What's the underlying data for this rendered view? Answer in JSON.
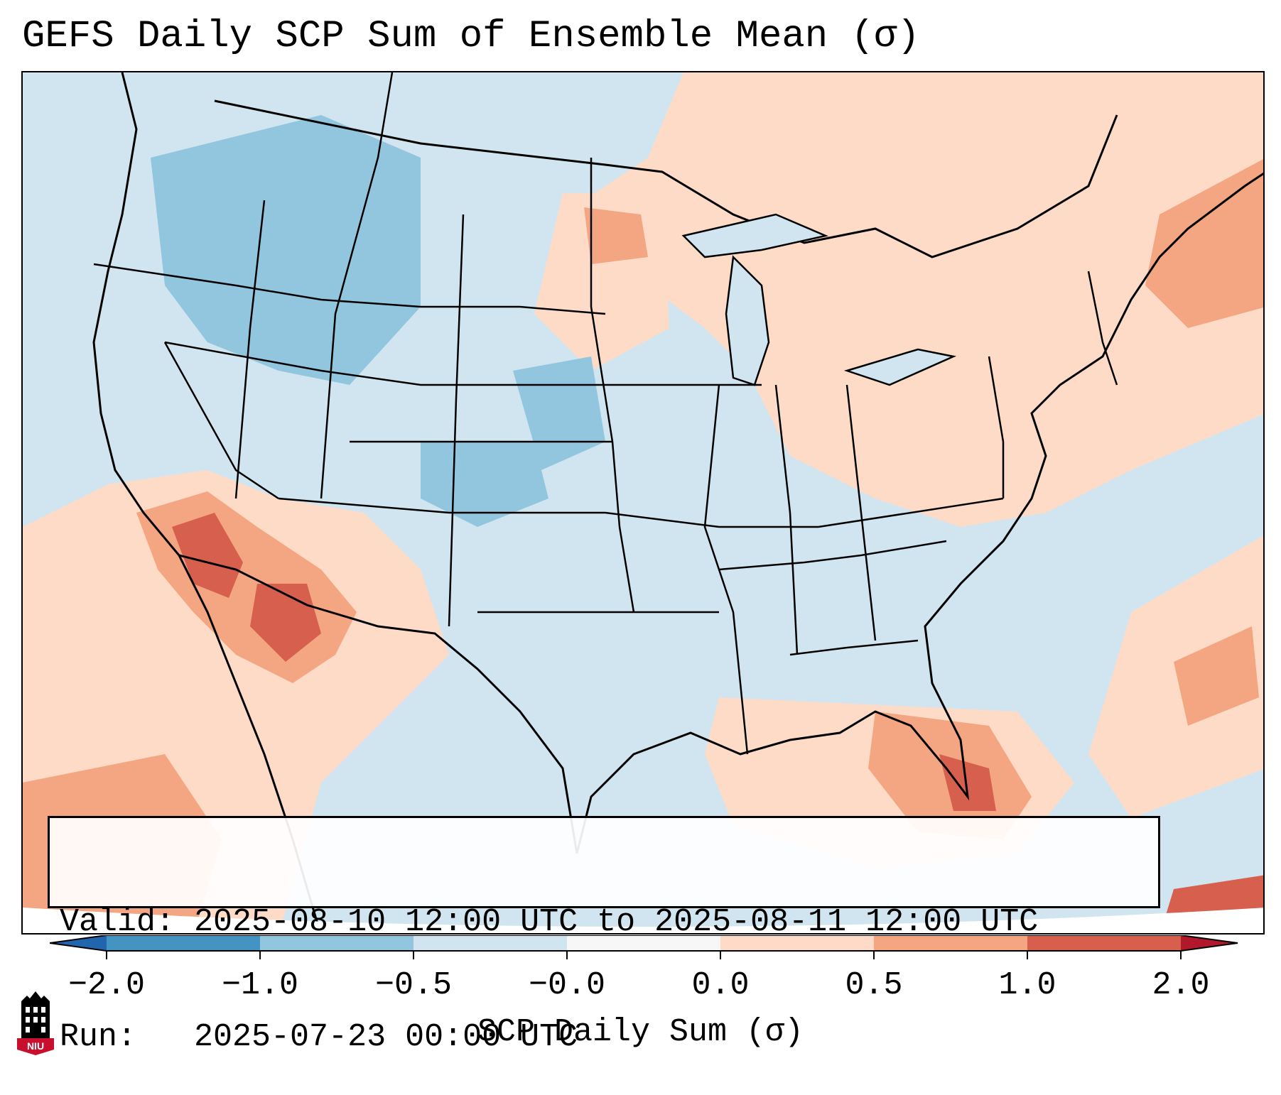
{
  "title": "GEFS Daily SCP Sum of Ensemble Mean (σ)",
  "info": {
    "valid_line": "Valid: 2025-08-10 12:00 UTC to 2025-08-11 12:00 UTC",
    "run_line": "Run:   2025-07-23 00:00 UTC"
  },
  "colorbar": {
    "label": "SCP Daily Sum (σ)",
    "ticks": [
      "−2.0",
      "−1.0",
      "−0.5",
      "−0.0",
      "0.0",
      "0.5",
      "1.0",
      "2.0"
    ],
    "colors": [
      "#4393c3",
      "#92c5de",
      "#d1e5f0",
      "#f7f7f7",
      "#fddbc7",
      "#f4a582",
      "#d6604d"
    ],
    "extend_min_color": "#2166ac",
    "extend_max_color": "#b2182b"
  },
  "logo": {
    "text": "NIU",
    "color": "#c8102e"
  }
}
